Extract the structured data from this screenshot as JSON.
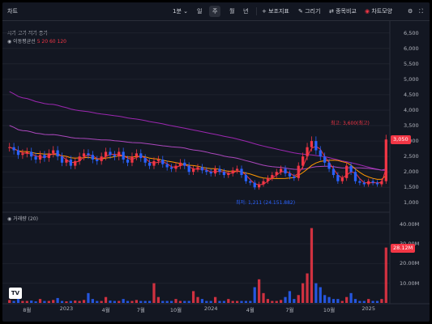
{
  "toolbar": {
    "symbol": "차트",
    "interval": "1분",
    "interval_icon": "chevron-down-icon",
    "tabs": [
      "일",
      "주",
      "월",
      "년"
    ],
    "active_tab": "주",
    "indicators_label": "보조지표",
    "draw_label": "그리기",
    "compare_label": "종목비교",
    "chart_style_label": "차트모양"
  },
  "legend": {
    "title": "시가 고가 저가 종가",
    "ma_name": "이동평균선",
    "ma_values": "5 20 60 120"
  },
  "volume_legend": {
    "title": "거래량 (20)"
  },
  "annotations": {
    "high_label": "최고: 3,600(최고)",
    "low_label": "최저: 1,211 (24.151.882)"
  },
  "price_axis": {
    "ticks": [
      "6,500",
      "6,000",
      "5,500",
      "5,000",
      "4,500",
      "4,000",
      "3,500",
      "3,000",
      "2,500",
      "2,000",
      "1,500",
      "1,000"
    ],
    "current_price": "3,050"
  },
  "volume_axis": {
    "ticks": [
      "40.00M",
      "30.00M",
      "20.00M",
      "10.00M"
    ],
    "current_volume": "28.12M"
  },
  "time_axis": {
    "ticks": [
      "8월",
      "2023",
      "4월",
      "7월",
      "10월",
      "2024",
      "4월",
      "7월",
      "10월",
      "2025"
    ]
  },
  "logo": "TV",
  "colors": {
    "up": "#f23645",
    "down": "#2962ff",
    "background": "#131722",
    "ma5": "#f23645",
    "ma20": "#ff9800",
    "ma60": "#ab47bc",
    "ma120": "#9c27b0"
  },
  "chart_data": {
    "type": "candlestick",
    "series": [
      {
        "name": "가격 (주봉)",
        "close": [
          2800,
          2700,
          2550,
          2600,
          2650,
          2500,
          2400,
          2550,
          2450,
          2600,
          2700,
          2500,
          2300,
          2400,
          2200,
          2350,
          2500,
          2600,
          2550,
          2400,
          2350,
          2500,
          2650,
          2550,
          2500,
          2650,
          2400,
          2300,
          2500,
          2600,
          2450,
          2300,
          2200,
          2350,
          2400,
          2250,
          2150,
          2100,
          2200,
          2300,
          2200,
          2000,
          2100,
          2150,
          2050,
          2000,
          1950,
          2100,
          2000,
          1900,
          1950,
          2050,
          2100,
          1900,
          1700,
          1650,
          1500,
          1600,
          1700,
          1800,
          1900,
          2000,
          2100,
          1950,
          1850,
          1800,
          2200,
          2500,
          2800,
          3000,
          2700,
          2500,
          2300,
          2100,
          1900,
          1700,
          1800,
          2200,
          2000,
          1700,
          1650,
          1600,
          1700,
          1650,
          1600,
          1700,
          3050
        ]
      },
      {
        "name": "거래량",
        "volume": [
          1.5,
          1,
          2,
          1,
          1,
          1.2,
          0.8,
          2,
          1,
          1,
          1.5,
          2.5,
          1,
          0.8,
          1,
          1.2,
          1,
          1.5,
          5,
          2,
          1,
          1,
          3,
          1.2,
          1,
          1,
          2,
          1,
          1,
          1.5,
          1,
          1,
          1,
          10,
          3,
          1,
          1,
          1,
          2,
          1,
          1,
          1,
          6,
          3,
          2,
          1,
          1,
          3,
          1,
          1,
          2,
          1,
          1,
          1,
          1,
          1,
          8,
          12,
          5,
          2,
          1,
          1,
          1.5,
          3,
          6,
          2,
          4,
          10,
          15,
          38,
          10,
          8,
          4,
          3,
          2,
          2,
          1,
          3,
          5,
          2,
          1,
          1,
          2,
          1,
          1,
          2,
          28.12
        ]
      }
    ],
    "y_price_range": [
      800,
      6700
    ],
    "y_volume_range": [
      0,
      44
    ],
    "high_price": 3600,
    "low_price": 1211,
    "last_price": 3050,
    "last_volume": "28.12M"
  }
}
